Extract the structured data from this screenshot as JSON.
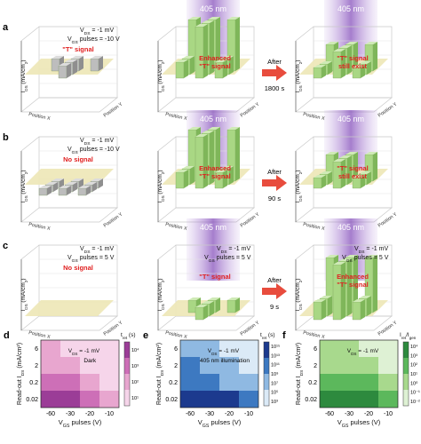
{
  "colors": {
    "beam": "#8e5cc2",
    "plane": "#ede7b6",
    "bar_green": "#a9d784",
    "bar_gray": "#bdbdbd",
    "red_text": "#e02020",
    "arrow": "#e84c3d",
    "pink_dark": "#a34ea3",
    "blue_dark": "#1f3a93",
    "green_dark": "#2e8b3e"
  },
  "rows": [
    {
      "label": "a",
      "cond": [
        "V",
        "DS",
        " = -1 mV",
        "V",
        "GS",
        " pulses = -10 V"
      ],
      "cond2": "",
      "z_label": [
        "I",
        "DS",
        " (mA/cm",
        "2",
        ")"
      ],
      "x_axis": "Position X",
      "y_axis": "Position Y",
      "beam_label": "405 nm",
      "after": "After",
      "after_time": "1800 s",
      "panels": [
        {
          "caption": "\"T\" signal",
          "beam": false,
          "bars": "gray",
          "mode": "T"
        },
        {
          "caption": "Enhanced \"T\" signal",
          "beam": true,
          "bars": "green",
          "mode": "Tbig"
        },
        {
          "caption": "\"T\" signal still exist",
          "beam": true,
          "bars": "green",
          "mode": "Tsmall"
        }
      ]
    },
    {
      "label": "b",
      "cond": [
        "V",
        "DS",
        " = -1 mV",
        "V",
        "GS",
        " pulses = -10 V"
      ],
      "z_label": [
        "I",
        "DS",
        " (mA/cm",
        "2",
        ")"
      ],
      "x_axis": "Position X",
      "y_axis": "Position Y",
      "beam_label": "405 nm",
      "after": "After",
      "after_time": "90 s",
      "panels": [
        {
          "caption": "No signal",
          "beam": false,
          "bars": "gray",
          "mode": "down"
        },
        {
          "caption": "Enhanced \"T\" signal",
          "beam": true,
          "bars": "green",
          "mode": "Tbig"
        },
        {
          "caption": "\"T\" signal still exist",
          "beam": true,
          "bars": "green",
          "mode": "Tsmall"
        }
      ]
    },
    {
      "label": "c",
      "cond": [
        "V",
        "DS",
        " = -1 mV",
        "V",
        "GS",
        " pulses = 5 V"
      ],
      "z_label": [
        "I",
        "DS",
        " (mA/cm",
        "2",
        ")"
      ],
      "x_axis": "Position X",
      "y_axis": "Position Y",
      "beam_label": "405 nm",
      "after": "After",
      "after_time": "9 s",
      "panels": [
        {
          "caption": "No signal",
          "beam": false,
          "bars": "none",
          "mode": "none"
        },
        {
          "caption": "\"T\" signal",
          "beam": true,
          "bars": "green",
          "mode": "Tlow"
        },
        {
          "caption": "Enhanced \"T\" signal",
          "beam": true,
          "bars": "green",
          "mode": "Ttall"
        }
      ]
    }
  ],
  "heatmaps": [
    {
      "label": "d",
      "legend_main": "t",
      "legend_sub": "ret",
      "legend_unit": " (s)",
      "note_line1": "V_DS = -1 mV",
      "note_line2": "Dark",
      "ticks": [
        "10⁴",
        "10³",
        "10²",
        "10¹"
      ],
      "palette": [
        "#f6d5ea",
        "#e8a6cf",
        "#cd6fb7",
        "#9b3d97"
      ],
      "values": [
        [
          1,
          0,
          0,
          0
        ],
        [
          1,
          1,
          0,
          0
        ],
        [
          2,
          2,
          1,
          0
        ],
        [
          3,
          3,
          2,
          1
        ]
      ]
    },
    {
      "label": "e",
      "legend_main": "t",
      "legend_sub": "ret",
      "legend_unit": " (s)",
      "note_line1": "V_DS = -1 mV",
      "note_line2": "405 nm illumination",
      "ticks": [
        "10¹⁵",
        "10¹³",
        "10¹¹",
        "10⁹",
        "10⁷",
        "10⁵",
        "10³"
      ],
      "palette": [
        "#dbeaf7",
        "#8fb9e2",
        "#3d79c1",
        "#1c3a8e"
      ],
      "values": [
        [
          1,
          1,
          0,
          0
        ],
        [
          2,
          1,
          1,
          0
        ],
        [
          2,
          2,
          1,
          1
        ],
        [
          3,
          3,
          3,
          2
        ]
      ]
    },
    {
      "label": "f",
      "legend_main": "I",
      "legend_sub": "ret",
      "legend_mid": "/I",
      "legend_sub2": "gen",
      "legend_unit": "",
      "note_line1": "V_DS = -1 mV",
      "note_line2": "",
      "ticks": [
        "10⁴",
        "10³",
        "10²",
        "10¹",
        "10⁰",
        "10⁻¹",
        "10⁻²"
      ],
      "palette": [
        "#def1d4",
        "#a8d98d",
        "#5cb85c",
        "#2d8a3e"
      ],
      "values": [
        [
          1,
          1,
          0,
          0
        ],
        [
          1,
          1,
          1,
          0
        ],
        [
          2,
          2,
          2,
          1
        ],
        [
          3,
          3,
          3,
          2
        ]
      ]
    }
  ],
  "heatmap_axes": {
    "x_ticks": [
      "-60",
      "-30",
      "-20",
      "-10"
    ],
    "y_ticks": [
      "6",
      "2",
      "0.2",
      "0.02"
    ],
    "xlabel": "V_GS pulses (V)",
    "ylabel": "Read-out I_DS (mA/cm²)"
  }
}
